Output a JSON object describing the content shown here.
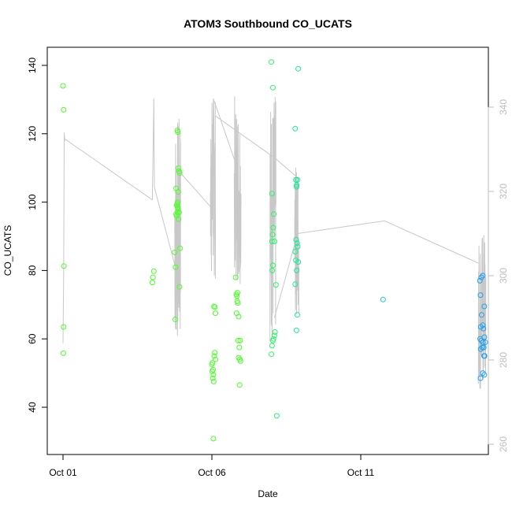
{
  "chart_data": {
    "type": "scatter",
    "title": "ATOM3 Southbound CO_UCATS",
    "xlabel": "Date",
    "ylabel": "CO_UCATS",
    "x_units": "days since Oct 01",
    "xlim": [
      -0.3,
      14.6
    ],
    "ylim": [
      27,
      146
    ],
    "y2lim": [
      257,
      369
    ],
    "x_ticks": [
      {
        "value": 0,
        "label": "Oct 01"
      },
      {
        "value": 5,
        "label": "Oct 06"
      },
      {
        "value": 10,
        "label": "Oct 11"
      }
    ],
    "y_ticks": [
      40,
      60,
      80,
      100,
      120,
      140
    ],
    "y2_ticks": [
      260,
      280,
      300,
      320,
      340
    ],
    "colors": {
      "axis": "#000000",
      "secondary_axis": "#bdbdbd",
      "line": "#c8c8c8",
      "green": "#4cff2a",
      "teal": "#14e6a0",
      "blue": "#22a0f0"
    },
    "series": [
      {
        "type": "scatter",
        "axis": "left",
        "points": [
          [
            0.0,
            134.0
          ],
          [
            0.02,
            127.0
          ],
          [
            0.03,
            81.3
          ],
          [
            0.02,
            63.5
          ],
          [
            0.01,
            55.8
          ],
          [
            3.05,
            79.8
          ],
          [
            3.02,
            78.0
          ],
          [
            3.0,
            76.5
          ],
          [
            3.75,
            85.3
          ],
          [
            3.78,
            81.0
          ],
          [
            3.77,
            65.7
          ],
          [
            3.8,
            104.0
          ],
          [
            3.82,
            99.0
          ],
          [
            3.84,
            121.0
          ],
          [
            3.86,
            120.5
          ],
          [
            3.88,
            110.0
          ],
          [
            3.9,
            109.0
          ],
          [
            3.92,
            108.5
          ],
          [
            3.87,
            103.0
          ],
          [
            3.85,
            100.0
          ],
          [
            3.83,
            99.5
          ],
          [
            3.86,
            98.0
          ],
          [
            3.84,
            97.0
          ],
          [
            3.8,
            96.5
          ],
          [
            3.82,
            96.0
          ],
          [
            3.9,
            97.0
          ],
          [
            3.93,
            86.5
          ],
          [
            3.91,
            75.2
          ],
          [
            3.88,
            95.0
          ],
          [
            3.85,
            98.5
          ],
          [
            5.0,
            52.5
          ],
          [
            5.02,
            53.0
          ],
          [
            5.04,
            51.0
          ],
          [
            5.01,
            50.5
          ],
          [
            5.05,
            49.5
          ],
          [
            5.03,
            48.5
          ],
          [
            5.06,
            47.5
          ],
          [
            5.08,
            55.0
          ],
          [
            5.1,
            56.0
          ],
          [
            5.12,
            54.0
          ],
          [
            5.07,
            69.5
          ],
          [
            5.1,
            69.3
          ],
          [
            5.12,
            67.5
          ],
          [
            5.05,
            30.8
          ],
          [
            5.8,
            78.0
          ],
          [
            5.82,
            73.0
          ],
          [
            5.84,
            72.5
          ],
          [
            5.86,
            73.5
          ],
          [
            5.85,
            71.0
          ],
          [
            5.87,
            70.5
          ],
          [
            5.83,
            67.5
          ],
          [
            5.9,
            66.5
          ],
          [
            5.88,
            59.5
          ],
          [
            5.95,
            59.5
          ],
          [
            5.92,
            57.5
          ],
          [
            5.9,
            54.5
          ],
          [
            5.94,
            54.0
          ],
          [
            5.96,
            53.5
          ],
          [
            5.93,
            46.5
          ]
        ]
      },
      {
        "type": "scatter",
        "axis": "left",
        "points": [
          [
            7.0,
            141.0
          ],
          [
            7.05,
            133.5
          ],
          [
            7.02,
            102.5
          ],
          [
            7.08,
            96.5
          ],
          [
            7.06,
            92.5
          ],
          [
            7.04,
            90.5
          ],
          [
            7.02,
            88.5
          ],
          [
            7.1,
            88.5
          ],
          [
            7.05,
            81.5
          ],
          [
            7.03,
            80.0
          ],
          [
            7.15,
            75.8
          ],
          [
            7.12,
            62.0
          ],
          [
            7.1,
            61.0
          ],
          [
            7.07,
            60.0
          ],
          [
            7.05,
            59.5
          ],
          [
            7.02,
            58.0
          ],
          [
            7.0,
            55.5
          ],
          [
            7.18,
            37.5
          ],
          [
            7.8,
            121.5
          ],
          [
            7.82,
            106.5
          ],
          [
            7.85,
            105.0
          ],
          [
            7.87,
            106.5
          ],
          [
            7.84,
            104.5
          ],
          [
            7.9,
            139.0
          ],
          [
            7.83,
            89.0
          ],
          [
            7.86,
            88.0
          ],
          [
            7.88,
            87.0
          ],
          [
            7.8,
            85.5
          ],
          [
            7.82,
            83.0
          ],
          [
            7.9,
            82.5
          ],
          [
            7.85,
            80.0
          ],
          [
            7.8,
            76.0
          ],
          [
            7.87,
            67.0
          ],
          [
            7.84,
            62.5
          ]
        ]
      },
      {
        "type": "scatter",
        "axis": "left",
        "points": [
          [
            10.75,
            71.5
          ],
          [
            14.0,
            77.0
          ],
          [
            14.05,
            78.0
          ],
          [
            14.1,
            78.5
          ],
          [
            14.02,
            72.8
          ],
          [
            14.15,
            69.5
          ],
          [
            14.06,
            67.0
          ],
          [
            14.1,
            64.0
          ],
          [
            14.03,
            63.5
          ],
          [
            14.12,
            63.0
          ],
          [
            14.01,
            60.0
          ],
          [
            14.05,
            59.5
          ],
          [
            14.1,
            59.0
          ],
          [
            14.15,
            60.5
          ],
          [
            14.18,
            59.0
          ],
          [
            14.08,
            57.5
          ],
          [
            14.13,
            57.5
          ],
          [
            14.03,
            57.0
          ],
          [
            14.14,
            55.0
          ],
          [
            14.16,
            55.0
          ],
          [
            14.1,
            50.0
          ],
          [
            14.15,
            49.5
          ],
          [
            14.02,
            48.5
          ]
        ]
      },
      {
        "type": "line",
        "axis": "right",
        "segments": [
          [
            [
              0.0,
              284.0
            ],
            [
              0.02,
              300.0
            ],
            [
              0.04,
              334.0
            ],
            [
              0.06,
              332.0
            ],
            [
              0.05,
              332.5
            ],
            [
              3.0,
              318.0
            ]
          ],
          [
            [
              3.0,
              318.0
            ],
            [
              3.05,
              342.0
            ],
            [
              3.07,
              321.0
            ],
            [
              3.85,
              300.0
            ],
            [
              3.87,
              325.0
            ]
          ]
        ],
        "dense_bursts": [
          {
            "x_start": 3.75,
            "x_end": 3.95,
            "y_min": 283.0,
            "y_max": 338.0
          },
          {
            "x_start": 4.95,
            "x_end": 5.12,
            "y_min": 299.0,
            "y_max": 343.0
          },
          {
            "x_start": 5.75,
            "x_end": 5.98,
            "y_min": 298.0,
            "y_max": 343.0
          },
          {
            "x_start": 6.95,
            "x_end": 7.15,
            "y_min": 284.0,
            "y_max": 343.0
          },
          {
            "x_start": 7.78,
            "x_end": 7.92,
            "y_min": 290.0,
            "y_max": 326.0
          },
          {
            "x_start": 13.95,
            "x_end": 14.2,
            "y_min": 272.0,
            "y_max": 311.0
          }
        ],
        "connectors": [
          [
            [
              3.87,
              325.0
            ],
            [
              5.0,
              316.0
            ]
          ],
          [
            [
              5.0,
              316.0
            ],
            [
              5.05,
              342.0
            ],
            [
              5.88,
              325.0
            ]
          ],
          [
            [
              5.1,
              338.0
            ],
            [
              7.1,
              328.0
            ],
            [
              7.92,
              323.0
            ]
          ],
          [
            [
              7.1,
              290.0
            ],
            [
              7.88,
              310.0
            ],
            [
              10.8,
              313.0
            ],
            [
              13.95,
              303.0
            ]
          ]
        ]
      }
    ]
  }
}
